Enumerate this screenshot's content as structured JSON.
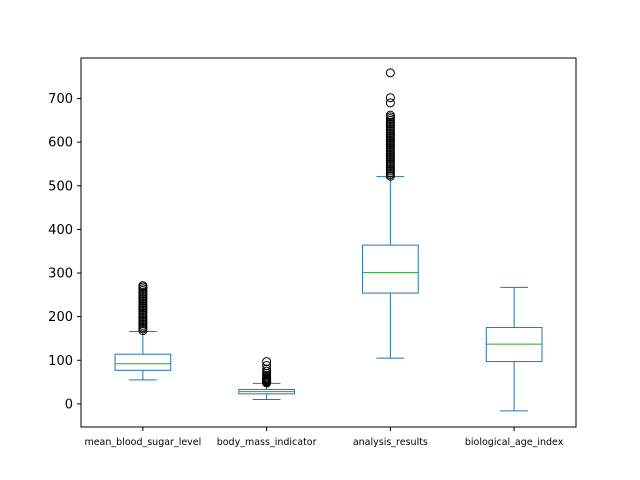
{
  "chart_data": {
    "type": "box",
    "title": "",
    "xlabel": "",
    "ylabel": "",
    "ylim": [
      -53,
      793
    ],
    "yticks": [
      0,
      100,
      200,
      300,
      400,
      500,
      600,
      700
    ],
    "grid": false,
    "colors": {
      "box": "#1f77b4",
      "median": "#2ca02c",
      "flier": "#000000",
      "axes": "#000000"
    },
    "categories": [
      "mean_blood_sugar_level",
      "body_mass_indicator",
      "analysis_results",
      "biological_age_index"
    ],
    "series": [
      {
        "whisker_low": 55,
        "q1": 77,
        "median": 92,
        "q3": 114,
        "whisker_high": 166,
        "fliers": [
          168,
          172,
          176,
          180,
          184,
          188,
          192,
          196,
          200,
          204,
          208,
          212,
          216,
          220,
          224,
          228,
          232,
          236,
          240,
          244,
          248,
          252,
          256,
          260,
          264,
          268,
          271
        ]
      },
      {
        "whisker_low": 10,
        "q1": 23,
        "median": 28,
        "q3": 33,
        "whisker_high": 47,
        "fliers": [
          48,
          50,
          52,
          54,
          56,
          58,
          60,
          63,
          66,
          70,
          75,
          80,
          88,
          97
        ]
      },
      {
        "whisker_low": 105,
        "q1": 254,
        "median": 301,
        "q3": 364,
        "whisker_high": 521,
        "fliers": [
          522,
          526,
          530,
          534,
          538,
          542,
          546,
          550,
          554,
          558,
          562,
          566,
          570,
          574,
          578,
          582,
          586,
          590,
          594,
          598,
          602,
          606,
          610,
          614,
          618,
          622,
          626,
          630,
          634,
          638,
          642,
          646,
          650,
          654,
          658,
          662,
          690,
          702,
          759
        ]
      },
      {
        "whisker_low": -16,
        "q1": 97,
        "median": 137,
        "q3": 175,
        "whisker_high": 267,
        "fliers": []
      }
    ]
  }
}
